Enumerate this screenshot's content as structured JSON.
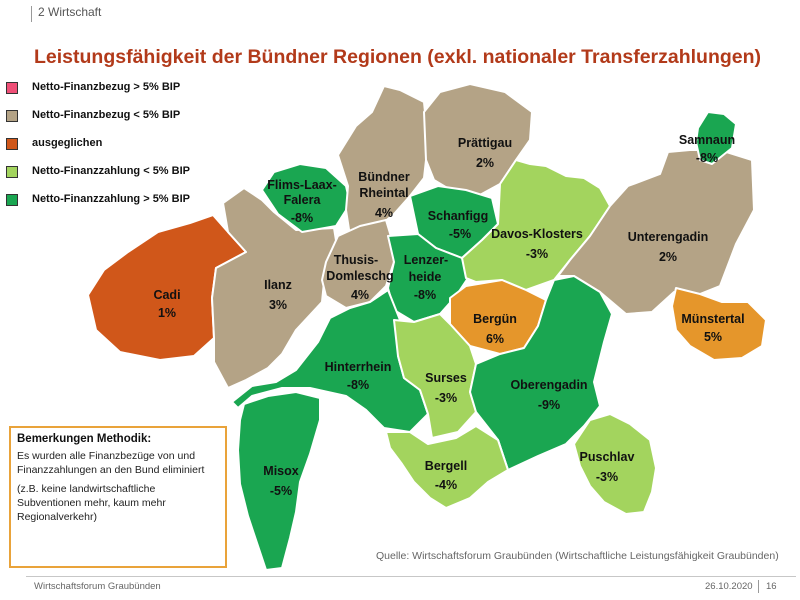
{
  "header": {
    "section": "2 Wirtschaft"
  },
  "title": "Leistungsfähigkeit der Bündner Regionen (exkl. nationaler Transferzahlungen)",
  "colors": {
    "netto_bezug_gt5": "#ef4f77",
    "netto_bezug_lt5": "#b4a386",
    "ausgeglichen": "#d0571a",
    "netto_zahlung_lt5": "#a3d45e",
    "netto_zahlung_gt5": "#1aa651",
    "orange_region": "#e5962b",
    "title": "#b23a1a",
    "note_border": "#e9a33a"
  },
  "legend": [
    {
      "label": "Netto-Finanzbezug > 5% BIP",
      "color": "#ef4f77"
    },
    {
      "label": "Netto-Finanzbezug < 5% BIP",
      "color": "#b4a386"
    },
    {
      "label": "ausgeglichen",
      "color": "#d0571a"
    },
    {
      "label": "Netto-Finanzzahlung < 5% BIP",
      "color": "#a3d45e"
    },
    {
      "label": "Netto-Finanzzahlung > 5% BIP",
      "color": "#1aa651"
    }
  ],
  "regions": [
    {
      "id": "cadi",
      "name": "Cadi",
      "value": "1%",
      "color": "#d0571a"
    },
    {
      "id": "ilanz",
      "name": "Ilanz",
      "value": "3%",
      "color": "#b4a386"
    },
    {
      "id": "flims",
      "name": "Flims-Laax-Falera",
      "value": "-8%",
      "color": "#1aa651"
    },
    {
      "id": "rheintal",
      "name": "Bündner Rheintal",
      "value": "4%",
      "color": "#b4a386"
    },
    {
      "id": "thusis",
      "name": "Thusis-Domleschg",
      "value": "4%",
      "color": "#b4a386"
    },
    {
      "id": "praettigau",
      "name": "Prättigau",
      "value": "2%",
      "color": "#b4a386"
    },
    {
      "id": "schanfigg",
      "name": "Schanfigg",
      "value": "-5%",
      "color": "#1aa651"
    },
    {
      "id": "lenzerheide",
      "name": "Lenzerheide",
      "value": "-8%",
      "color": "#1aa651"
    },
    {
      "id": "davos",
      "name": "Davos-Klosters",
      "value": "-3%",
      "color": "#a3d45e"
    },
    {
      "id": "samnaun",
      "name": "Samnaun",
      "value": "-8%",
      "color": "#1aa651"
    },
    {
      "id": "unterengadin",
      "name": "Unterengadin",
      "value": "2%",
      "color": "#b4a386"
    },
    {
      "id": "bergun",
      "name": "Bergün",
      "value": "6%",
      "color": "#e5962b"
    },
    {
      "id": "muenstertal",
      "name": "Münstertal",
      "value": "5%",
      "color": "#e5962b"
    },
    {
      "id": "hinterrhein",
      "name": "Hinterrhein",
      "value": "-8%",
      "color": "#1aa651"
    },
    {
      "id": "surses",
      "name": "Surses",
      "value": "-3%",
      "color": "#a3d45e"
    },
    {
      "id": "oberengadin",
      "name": "Oberengadin",
      "value": "-9%",
      "color": "#1aa651"
    },
    {
      "id": "misox",
      "name": "Misox",
      "value": "-5%",
      "color": "#1aa651"
    },
    {
      "id": "bergell",
      "name": "Bergell",
      "value": "-4%",
      "color": "#a3d45e"
    },
    {
      "id": "puschlav",
      "name": "Puschlav",
      "value": "-3%",
      "color": "#a3d45e"
    }
  ],
  "note": {
    "title": "Bemerkungen Methodik:",
    "text1": "Es wurden alle Finanzbezüge von und Finanzzahlungen an den Bund eliminiert",
    "text2": "(z.B. keine landwirtschaftliche Subventionen mehr, kaum mehr Regionalverkehr)"
  },
  "source": "Quelle: Wirtschaftsforum Graubünden (Wirtschaftliche Leistungsfähigkeit Graubünden)",
  "footer": {
    "org": "Wirtschaftsforum Graubünden",
    "date": "26.10.2020",
    "page": "16"
  }
}
